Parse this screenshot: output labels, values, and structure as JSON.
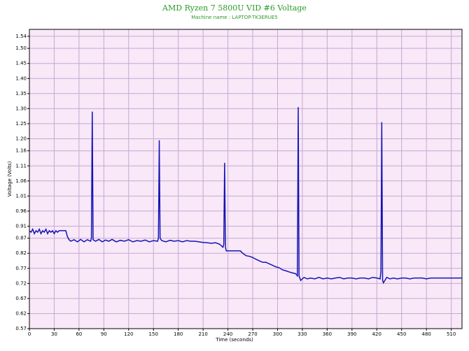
{
  "chart_data": {
    "type": "line",
    "title": "AMD Ryzen 7 5800U VID #6 Voltage",
    "subtitle": "Machine name : LAPTOP-TK3ERUE5",
    "x_label": "Time (seconds)",
    "y_label": "Voltage (Volts)",
    "grid": true,
    "xlim": [
      0,
      523
    ],
    "ylim": [
      0.57,
      1.563
    ],
    "xticks": [
      0,
      30,
      60,
      90,
      120,
      150,
      180,
      210,
      240,
      270,
      300,
      330,
      360,
      390,
      420,
      450,
      480,
      510
    ],
    "yticks": [
      0.57,
      0.62,
      0.67,
      0.72,
      0.77,
      0.82,
      0.87,
      0.91,
      0.96,
      1.01,
      1.06,
      1.11,
      1.16,
      {
        "value": 1.2,
        "label": "1.20"
      },
      1.25,
      {
        "value": 1.3,
        "label": "1.30"
      },
      1.35,
      {
        "value": 1.4,
        "label": "1.40"
      },
      1.45,
      {
        "value": 1.5,
        "label": "1.50"
      },
      1.54
    ],
    "series": [
      {
        "color": "#1414b4",
        "x": [
          0,
          2,
          4,
          6,
          8,
          10,
          12,
          14,
          16,
          18,
          20,
          22,
          24,
          26,
          28,
          30,
          32,
          34,
          36,
          40,
          44,
          46,
          48,
          50,
          54,
          58,
          62,
          66,
          70,
          74,
          75,
          76,
          77,
          80,
          84,
          88,
          92,
          96,
          100,
          105,
          110,
          115,
          120,
          125,
          130,
          135,
          140,
          145,
          150,
          155,
          156,
          157,
          158,
          160,
          165,
          170,
          175,
          180,
          185,
          190,
          195,
          200,
          205,
          210,
          215,
          220,
          225,
          230,
          234,
          235,
          236,
          237,
          238,
          245,
          250,
          255,
          258,
          262,
          266,
          270,
          274,
          278,
          282,
          286,
          290,
          294,
          298,
          302,
          306,
          310,
          314,
          318,
          322,
          324,
          325,
          326,
          328,
          332,
          336,
          340,
          345,
          350,
          355,
          360,
          365,
          370,
          375,
          380,
          385,
          390,
          395,
          400,
          405,
          410,
          415,
          420,
          424,
          425,
          426,
          427,
          428,
          432,
          436,
          440,
          445,
          450,
          455,
          460,
          465,
          470,
          475,
          480,
          485,
          490,
          495,
          500,
          505,
          510,
          515,
          520,
          523
        ],
        "values": [
          0.895,
          0.89,
          0.9,
          0.885,
          0.895,
          0.89,
          0.9,
          0.885,
          0.895,
          0.89,
          0.9,
          0.885,
          0.895,
          0.89,
          0.895,
          0.885,
          0.895,
          0.89,
          0.895,
          0.895,
          0.895,
          0.875,
          0.865,
          0.86,
          0.865,
          0.858,
          0.866,
          0.858,
          0.865,
          0.86,
          0.87,
          1.29,
          0.865,
          0.86,
          0.866,
          0.858,
          0.864,
          0.86,
          0.866,
          0.858,
          0.863,
          0.86,
          0.865,
          0.858,
          0.862,
          0.86,
          0.864,
          0.858,
          0.862,
          0.86,
          0.87,
          1.195,
          0.87,
          0.862,
          0.858,
          0.863,
          0.86,
          0.862,
          0.858,
          0.862,
          0.86,
          0.86,
          0.858,
          0.856,
          0.855,
          0.853,
          0.855,
          0.85,
          0.84,
          0.85,
          1.12,
          0.84,
          0.828,
          0.828,
          0.828,
          0.828,
          0.82,
          0.812,
          0.81,
          0.806,
          0.8,
          0.795,
          0.79,
          0.79,
          0.785,
          0.78,
          0.775,
          0.772,
          0.765,
          0.762,
          0.758,
          0.755,
          0.752,
          0.745,
          1.305,
          0.745,
          0.73,
          0.74,
          0.735,
          0.738,
          0.735,
          0.74,
          0.735,
          0.738,
          0.735,
          0.738,
          0.74,
          0.735,
          0.738,
          0.738,
          0.735,
          0.738,
          0.738,
          0.735,
          0.74,
          0.738,
          0.735,
          0.76,
          1.255,
          0.73,
          0.722,
          0.74,
          0.735,
          0.738,
          0.735,
          0.738,
          0.738,
          0.735,
          0.738,
          0.738,
          0.738,
          0.735,
          0.738,
          0.738,
          0.738,
          0.738,
          0.738,
          0.738,
          0.738,
          0.738,
          0.738
        ]
      }
    ]
  }
}
